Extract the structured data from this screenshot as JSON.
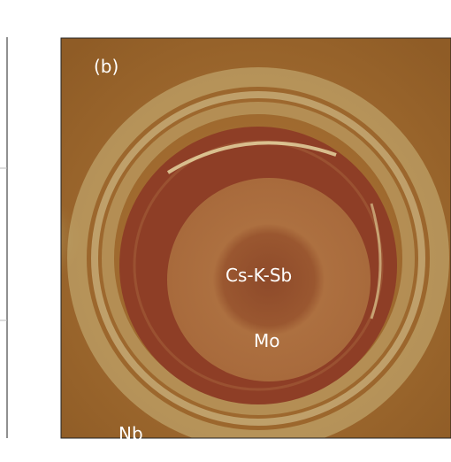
{
  "panel_label": "(b)",
  "labels": {
    "center": "Cs-K-Sb",
    "middle": "Mo",
    "outer": "Nb"
  }
}
